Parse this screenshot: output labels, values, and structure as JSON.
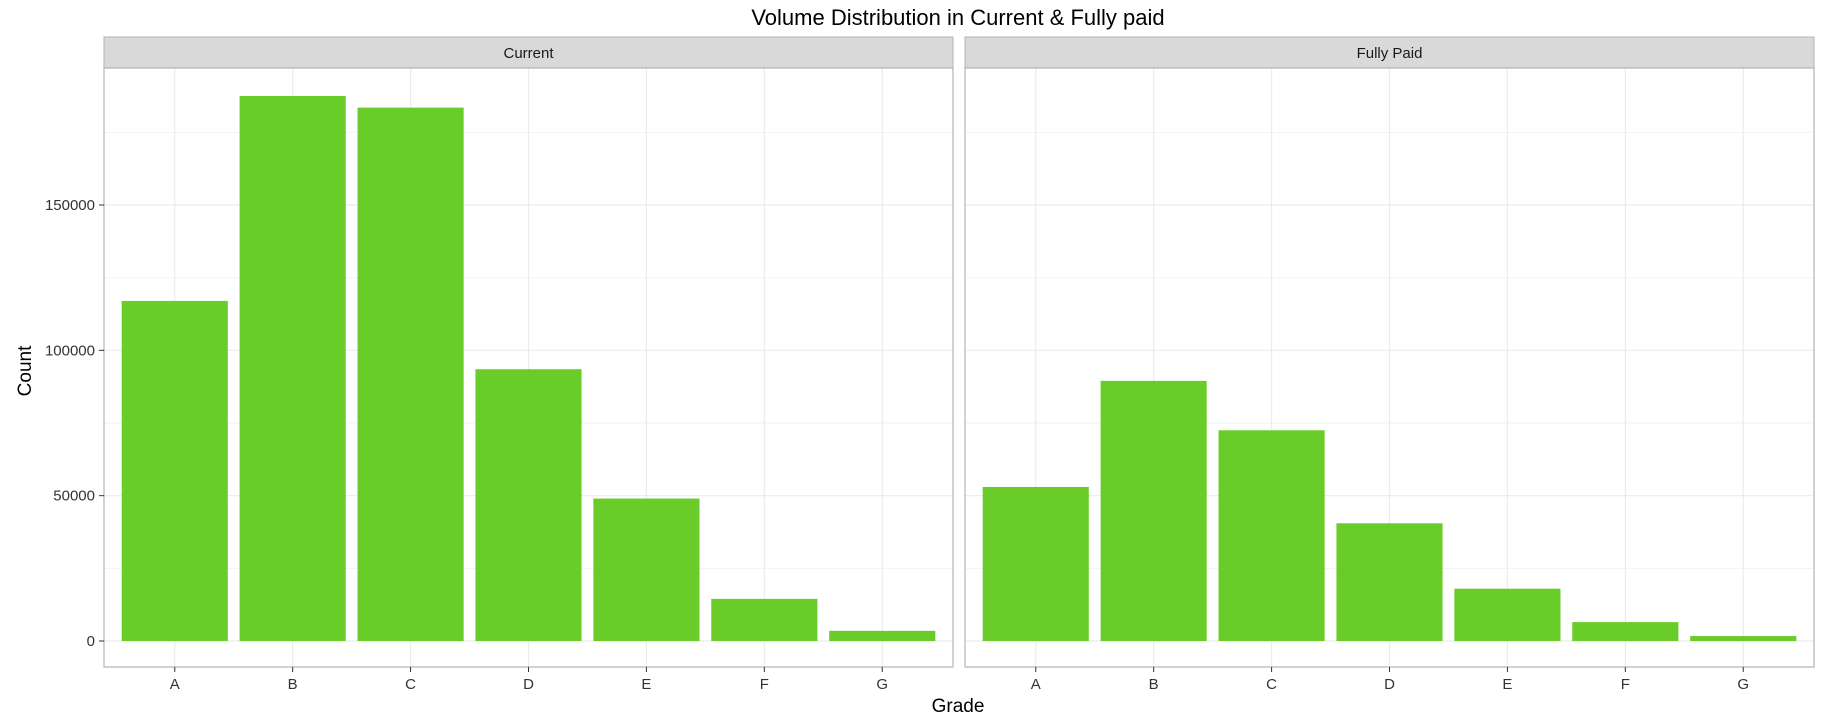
{
  "chart_data": {
    "type": "bar",
    "title": "Volume Distribution in Current & Fully paid",
    "xlabel": "Grade",
    "ylabel": "Count",
    "categories": [
      "A",
      "B",
      "C",
      "D",
      "E",
      "F",
      "G"
    ],
    "ylim": [
      0,
      197000
    ],
    "yticks": [
      0,
      50000,
      100000,
      150000
    ],
    "ytick_labels": [
      "0",
      "50000",
      "100000",
      "150000"
    ],
    "bar_color": "#6acc28",
    "grid": true,
    "facets": [
      {
        "label": "Current",
        "values": [
          117000,
          187500,
          183500,
          93500,
          49000,
          14500,
          3500
        ]
      },
      {
        "label": "Fully Paid",
        "values": [
          53000,
          89500,
          72500,
          40500,
          18000,
          6500,
          1700
        ]
      }
    ]
  }
}
